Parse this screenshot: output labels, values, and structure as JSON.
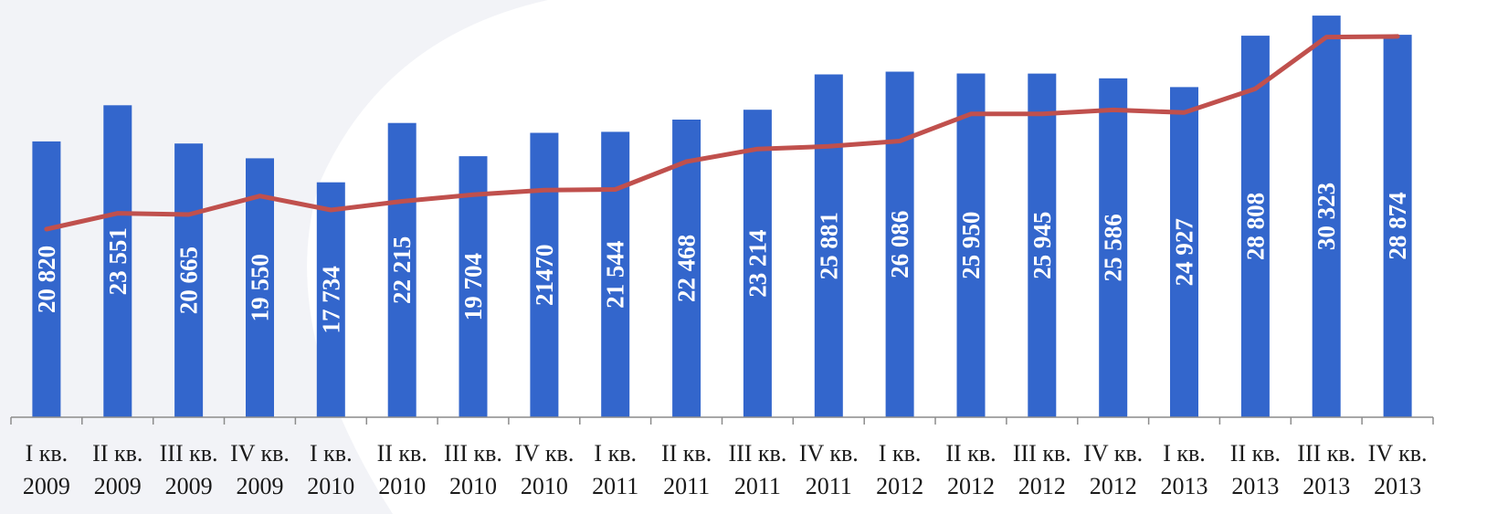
{
  "colors": {
    "bar": "#3366cc",
    "line": "#c0504d",
    "axis": "#8c8c8c",
    "background_swoosh": "#f2f3f7"
  },
  "chart_data": {
    "type": "bar",
    "title": "",
    "xlabel": "",
    "ylabel": "",
    "ylim": [
      0,
      31500
    ],
    "grid": false,
    "legend": "none",
    "categories": [
      [
        "I кв.",
        "2009"
      ],
      [
        "II кв.",
        "2009"
      ],
      [
        "III кв.",
        "2009"
      ],
      [
        "IV кв.",
        "2009"
      ],
      [
        "I кв.",
        "2010"
      ],
      [
        "II кв.",
        "2010"
      ],
      [
        "III кв.",
        "2010"
      ],
      [
        "IV кв.",
        "2010"
      ],
      [
        "I кв.",
        "2011"
      ],
      [
        "II кв.",
        "2011"
      ],
      [
        "III кв.",
        "2011"
      ],
      [
        "IV кв.",
        "2011"
      ],
      [
        "I кв.",
        "2012"
      ],
      [
        "II кв.",
        "2012"
      ],
      [
        "III кв.",
        "2012"
      ],
      [
        "IV кв.",
        "2012"
      ],
      [
        "I кв.",
        "2013"
      ],
      [
        "II кв.",
        "2013"
      ],
      [
        "III кв.",
        "2013"
      ],
      [
        "IV кв.",
        "2013"
      ]
    ],
    "series": [
      {
        "type": "bar",
        "values": [
          20820,
          23551,
          20665,
          19550,
          17734,
          22215,
          19704,
          21470,
          21544,
          22468,
          23214,
          25881,
          26086,
          25950,
          25945,
          25586,
          24927,
          28808,
          30323,
          28874
        ],
        "data_labels": [
          "20 820",
          "23 551",
          "20 665",
          "19 550",
          "17 734",
          "22 215",
          "19 704",
          "21470",
          "21 544",
          "22 468",
          "23 214",
          "25 881",
          "26 086",
          "25 950",
          "25 945",
          "25 586",
          "24 927",
          "28 808",
          "30 323",
          "28 874"
        ]
      },
      {
        "type": "line",
        "values": [
          14200,
          15400,
          15300,
          16700,
          15650,
          16300,
          16800,
          17150,
          17200,
          19300,
          20250,
          20450,
          20850,
          22900,
          22900,
          23200,
          23000,
          24800,
          28700,
          28750
        ]
      }
    ]
  }
}
